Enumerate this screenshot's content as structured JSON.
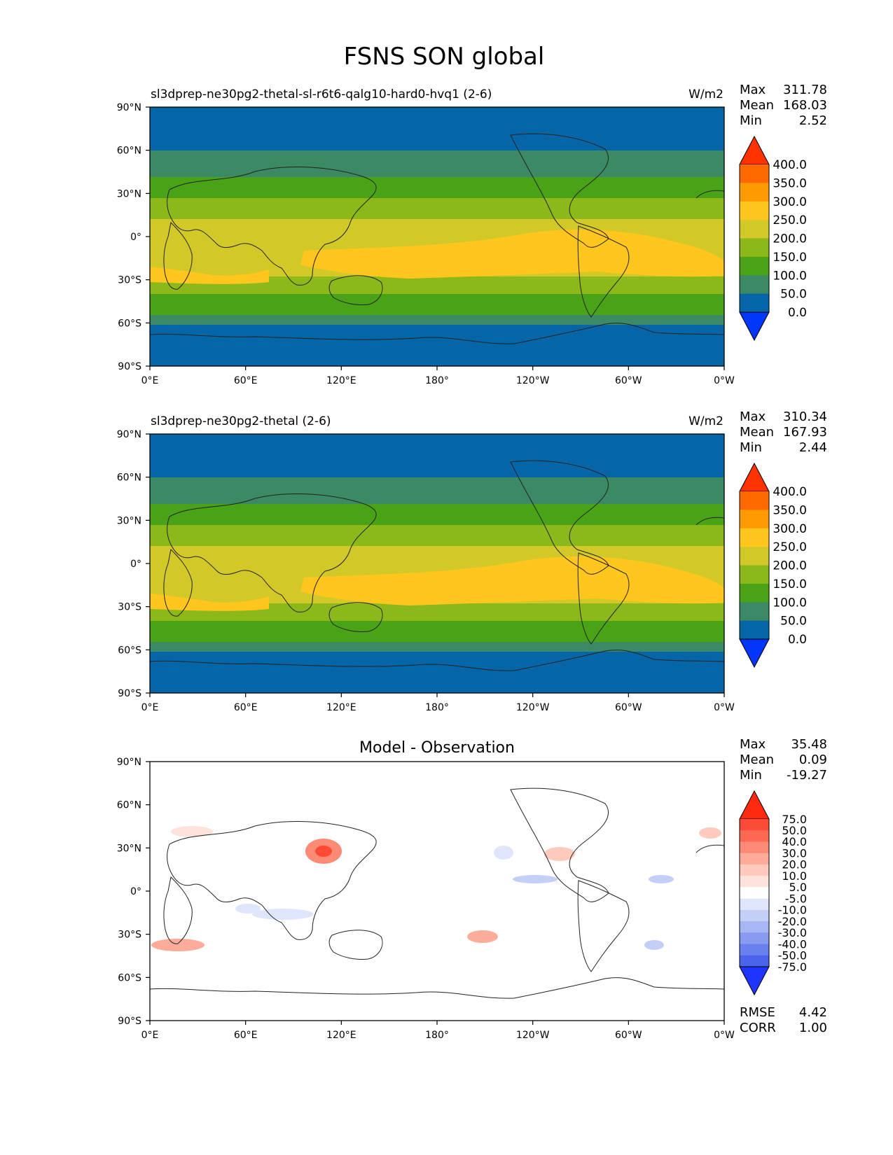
{
  "figure": {
    "title": "FSNS SON global"
  },
  "panels": [
    {
      "name": "test",
      "title": "sl3dprep-ne30pg2-thetal-sl-r6t6-qalg10-hard0-hvq1 (2-6)",
      "title_center": "",
      "units": "W/m2",
      "stats": {
        "max_label": "Max",
        "max": "311.78",
        "mean_label": "Mean",
        "mean": "168.03",
        "min_label": "Min",
        "min": "2.52"
      }
    },
    {
      "name": "ref",
      "title": "sl3dprep-ne30pg2-thetal (2-6)",
      "title_center": "",
      "units": "W/m2",
      "stats": {
        "max_label": "Max",
        "max": "310.34",
        "mean_label": "Mean",
        "mean": "167.93",
        "min_label": "Min",
        "min": "2.44"
      }
    },
    {
      "name": "diff",
      "title": "",
      "title_center": "Model - Observation",
      "units": "",
      "stats": {
        "max_label": "Max",
        "max": "35.48",
        "mean_label": "Mean",
        "mean": "0.09",
        "min_label": "Min",
        "min": "-19.27"
      },
      "metrics": {
        "rmse_label": "RMSE",
        "rmse": "4.42",
        "corr_label": "CORR",
        "corr": "1.00"
      }
    }
  ],
  "axes": {
    "y_ticks": [
      "90°N",
      "60°N",
      "30°N",
      "0°",
      "30°S",
      "60°S",
      "90°S"
    ],
    "x_ticks": [
      "0°E",
      "60°E",
      "120°E",
      "180°",
      "120°W",
      "60°W",
      "0°W"
    ]
  },
  "colorbars": {
    "main": {
      "levels": [
        "400.0",
        "350.0",
        "300.0",
        "250.0",
        "200.0",
        "150.0",
        "100.0",
        "50.0",
        "0.0"
      ],
      "colors": [
        "#ff3300",
        "#ff6a00",
        "#ff9a00",
        "#ffc61e",
        "#d2c827",
        "#8db81a",
        "#4aa216",
        "#3b8a63",
        "#0565a6",
        "#0236fa"
      ]
    },
    "diff": {
      "levels": [
        "75.0",
        "50.0",
        "40.0",
        "30.0",
        "20.0",
        "10.0",
        "5.0",
        "-5.0",
        "-10.0",
        "-20.0",
        "-30.0",
        "-40.0",
        "-50.0",
        "-75.0"
      ],
      "colors": [
        "#ff2a0f",
        "#fb4a35",
        "#fb6952",
        "#fc8a74",
        "#fcac98",
        "#fdcabd",
        "#fde3dc",
        "#ffffff",
        "#dfe6fb",
        "#c4cff8",
        "#a7b6f4",
        "#889bf1",
        "#6a80ee",
        "#4b64ec",
        "#1f35ff"
      ]
    }
  }
}
